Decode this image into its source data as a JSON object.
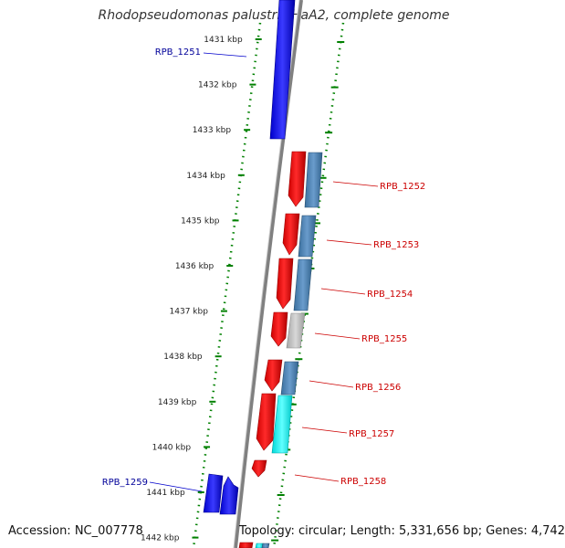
{
  "title": "Rhodopseudomonas palustris HaA2, complete genome",
  "ruler": [
    "1431 kbp",
    "1432 kbp",
    "1433 kbp",
    "1434 kbp",
    "1435 kbp",
    "1436 kbp",
    "1437 kbp",
    "1438 kbp",
    "1439 kbp",
    "1440 kbp",
    "1441 kbp",
    "1442 kbp"
  ],
  "gene_labels": {
    "rpb1251": "RPB_1251",
    "rpb1252": "RPB_1252",
    "rpb1253": "RPB_1253",
    "rpb1254": "RPB_1254",
    "rpb1255": "RPB_1255",
    "rpb1256": "RPB_1256",
    "rpb1257": "RPB_1257",
    "rpb1258": "RPB_1258",
    "rpb1259": "RPB_1259"
  },
  "colors": {
    "reverse_gene": "#0000ee",
    "forward_cds": "#ff0000",
    "annotation_blue": "#4682b4",
    "annotation_gray": "#c0c0c0",
    "annotation_cyan": "#00ffff",
    "forward_label": "#cc0000",
    "reverse_label": "#000099",
    "ruler": "#008000",
    "backbone": "#808080"
  },
  "footer": {
    "accession": "Accession: NC_007778",
    "topology": "Topology: circular; Length: 5,331,656 bp; Genes: 4,742"
  }
}
